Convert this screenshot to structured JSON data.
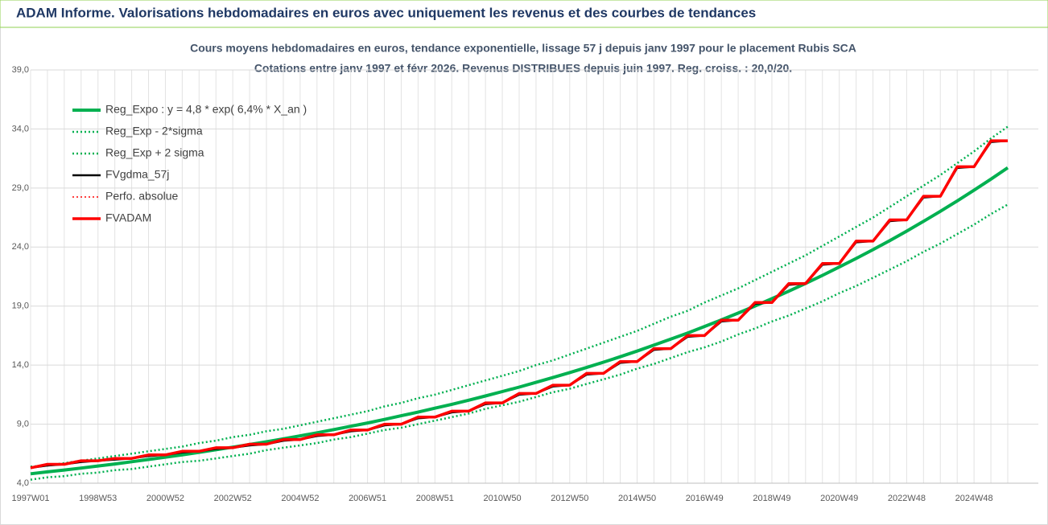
{
  "header": {
    "title": "ADAM Informe. Valorisations hebdomadaires en euros avec uniquement les revenus et des courbes de tendances"
  },
  "chart_data": {
    "type": "line",
    "title": "Cours moyens hebdomadaires en euros, tendance exponentielle, lissage 57 j depuis janv 1997 pour le placement Rubis SCA",
    "subtitle": "Cotations entre janv 1997 et févr 2026. Revenus DISTRIBUES depuis juin 1997. Reg. croiss. : 20,0/20.",
    "categories": [
      "1997W01",
      null,
      null,
      null,
      "1998W53",
      null,
      null,
      null,
      "2000W52",
      null,
      null,
      null,
      "2002W52",
      null,
      null,
      null,
      "2004W52",
      null,
      null,
      null,
      "2006W51",
      null,
      null,
      null,
      "2008W51",
      null,
      null,
      null,
      "2010W50",
      null,
      null,
      null,
      "2012W50",
      null,
      null,
      null,
      "2014W50",
      null,
      null,
      null,
      "2016W49",
      null,
      null,
      null,
      "2018W49",
      null,
      null,
      null,
      "2020W49",
      null,
      null,
      null,
      "2022W48",
      null,
      null,
      null,
      "2024W48",
      null,
      null
    ],
    "ylim": [
      4,
      39
    ],
    "yticks": [
      {
        "value": 4,
        "label": "4,0"
      },
      {
        "value": 9,
        "label": "9,0"
      },
      {
        "value": 14,
        "label": "14,0"
      },
      {
        "value": 19,
        "label": "19,0"
      },
      {
        "value": 24,
        "label": "24,0"
      },
      {
        "value": 29,
        "label": "29,0"
      },
      {
        "value": 34,
        "label": "34,0"
      },
      {
        "value": 39,
        "label": "39,0"
      }
    ],
    "grid": true,
    "legend": "upper-left",
    "series": [
      {
        "name": "Reg_Expo : y = 4,8 * exp( 6,4% *  X_an )",
        "color": "#00b050",
        "style": "solid",
        "width": 4,
        "values": [
          4.8,
          4.96,
          5.12,
          5.28,
          5.46,
          5.63,
          5.82,
          6.01,
          6.2,
          6.4,
          6.61,
          6.83,
          7.05,
          7.28,
          7.51,
          7.76,
          8.01,
          8.27,
          8.54,
          8.82,
          9.1,
          9.4,
          9.71,
          10.02,
          10.35,
          10.68,
          11.03,
          11.39,
          11.76,
          12.14,
          12.54,
          12.95,
          13.37,
          13.8,
          14.25,
          14.71,
          15.19,
          15.69,
          16.2,
          16.72,
          17.27,
          17.83,
          18.41,
          19.01,
          19.63,
          20.26,
          20.92,
          21.6,
          22.31,
          23.03,
          23.78,
          24.55,
          25.35,
          26.18,
          27.03,
          27.91,
          28.81,
          29.75,
          30.72
        ]
      },
      {
        "name": "Reg_Exp - 2*sigma",
        "color": "#00b050",
        "style": "dotted",
        "width": 2.5,
        "values": [
          4.3,
          4.5,
          4.6,
          4.8,
          4.9,
          5.1,
          5.2,
          5.4,
          5.6,
          5.8,
          5.9,
          6.1,
          6.3,
          6.5,
          6.8,
          7.0,
          7.2,
          7.4,
          7.7,
          7.9,
          8.2,
          8.5,
          8.7,
          9.0,
          9.3,
          9.6,
          9.9,
          10.3,
          10.6,
          10.9,
          11.3,
          11.7,
          12.0,
          12.4,
          12.8,
          13.2,
          13.7,
          14.1,
          14.6,
          15.1,
          15.5,
          16.0,
          16.6,
          17.1,
          17.7,
          18.2,
          18.8,
          19.4,
          20.1,
          20.7,
          21.4,
          22.1,
          22.8,
          23.6,
          24.3,
          25.1,
          25.9,
          26.8,
          27.6
        ]
      },
      {
        "name": "Reg_Exp + 2 sigma",
        "color": "#00b050",
        "style": "dotted",
        "width": 2.5,
        "values": [
          5.4,
          5.5,
          5.7,
          5.9,
          6.1,
          6.3,
          6.5,
          6.7,
          6.9,
          7.1,
          7.4,
          7.6,
          7.9,
          8.1,
          8.4,
          8.6,
          8.9,
          9.2,
          9.5,
          9.8,
          10.1,
          10.5,
          10.8,
          11.2,
          11.5,
          11.9,
          12.3,
          12.7,
          13.1,
          13.5,
          14.0,
          14.4,
          14.9,
          15.4,
          15.9,
          16.4,
          16.9,
          17.5,
          18.1,
          18.6,
          19.3,
          19.9,
          20.5,
          21.2,
          21.9,
          22.6,
          23.3,
          24.1,
          24.9,
          25.7,
          26.5,
          27.4,
          28.3,
          29.2,
          30.1,
          31.1,
          32.1,
          33.2,
          34.2
        ]
      },
      {
        "name": "FVgdma_57j",
        "color": "#000000",
        "style": "solid",
        "width": 2.5,
        "values": [
          5.3,
          5.5,
          5.6,
          5.8,
          5.9,
          6.0,
          6.1,
          6.3,
          6.4,
          6.6,
          6.7,
          6.9,
          7.0,
          7.2,
          7.3,
          7.6,
          7.7,
          8.0,
          8.1,
          8.4,
          8.5,
          8.9,
          9.0,
          9.5,
          9.6,
          10.0,
          10.1,
          10.7,
          10.8,
          11.5,
          11.6,
          12.2,
          12.3,
          13.2,
          13.3,
          14.2,
          14.3,
          15.3,
          15.4,
          16.4,
          16.5,
          17.7,
          17.8,
          19.2,
          19.3,
          20.8,
          20.9,
          22.5,
          22.6,
          24.4,
          24.5,
          26.2,
          26.3,
          28.2,
          28.3,
          30.7,
          30.8,
          32.9,
          33.0
        ]
      },
      {
        "name": "Perfo. absolue",
        "color": "#ff0000",
        "style": "dotted",
        "width": 1.5,
        "values": [
          5.3,
          5.6,
          5.6,
          5.9,
          5.9,
          6.1,
          6.1,
          6.4,
          6.4,
          6.7,
          6.7,
          7.0,
          7.0,
          7.3,
          7.3,
          7.7,
          7.7,
          8.1,
          8.1,
          8.5,
          8.5,
          9.0,
          9.0,
          9.6,
          9.6,
          10.1,
          10.1,
          10.8,
          10.8,
          11.6,
          11.6,
          12.3,
          12.3,
          13.3,
          13.3,
          14.3,
          14.3,
          15.4,
          15.4,
          16.5,
          16.5,
          17.8,
          17.8,
          19.3,
          19.3,
          20.9,
          20.9,
          22.6,
          22.6,
          24.5,
          24.5,
          26.3,
          26.3,
          28.3,
          28.3,
          30.8,
          30.8,
          33.0,
          33.0
        ]
      },
      {
        "name": "FVADAM",
        "color": "#ff0000",
        "style": "solid",
        "width": 3.5,
        "values": [
          5.3,
          5.6,
          5.6,
          5.9,
          5.9,
          6.1,
          6.1,
          6.4,
          6.4,
          6.7,
          6.7,
          7.0,
          7.0,
          7.3,
          7.3,
          7.7,
          7.7,
          8.1,
          8.1,
          8.5,
          8.5,
          9.0,
          9.0,
          9.6,
          9.6,
          10.1,
          10.1,
          10.8,
          10.8,
          11.6,
          11.6,
          12.3,
          12.3,
          13.3,
          13.3,
          14.3,
          14.3,
          15.4,
          15.4,
          16.5,
          16.5,
          17.8,
          17.8,
          19.3,
          19.3,
          20.9,
          20.9,
          22.6,
          22.6,
          24.5,
          24.5,
          26.3,
          26.3,
          28.3,
          28.3,
          30.8,
          30.8,
          33.0,
          33.0
        ]
      }
    ]
  }
}
